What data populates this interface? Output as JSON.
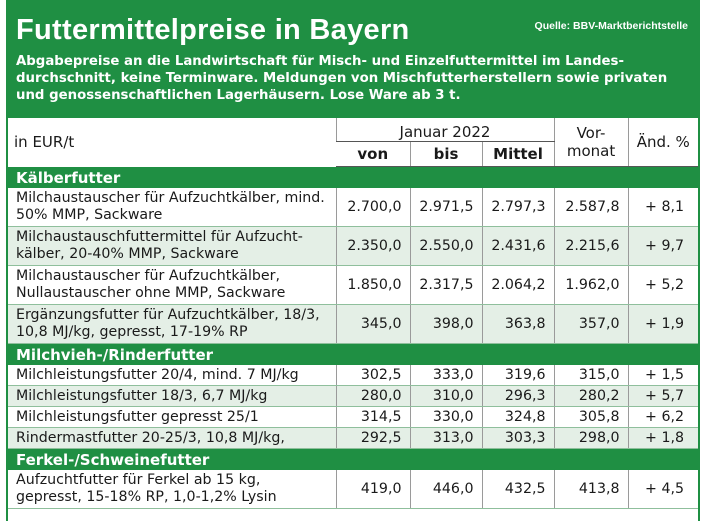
{
  "header": {
    "title": "Futtermittelpreise in Bayern",
    "source": "Quelle: BBV-Marktberichtstelle",
    "description": "Abgabepreise an die Landwirtschaft für Misch- und Einzelfuttermittel im Landes­durchschnitt, keine Terminware. Meldungen von Mischfutterherstellern sowie privaten und genossenschaftlichen Lagerhäusern. Lose Ware ab 3 t."
  },
  "table": {
    "unit": "in EUR/t",
    "month": "Januar 2022",
    "col_von": "von",
    "col_bis": "bis",
    "col_mittel": "Mittel",
    "col_vormonat": "Vor-\nmonat",
    "col_aend": "Änd. %",
    "sections": [
      {
        "title": "Kälberfutter",
        "rows": [
          {
            "product": "Milchaustauscher für Aufzuchtkälber, mind. 50% MMP, Sackware",
            "von": "2.700,0",
            "bis": "2.971,5",
            "mittel": "2.797,3",
            "vormonat": "2.587,8",
            "aend": "+ 8,1"
          },
          {
            "product": "Milchaustauschfuttermittel für Aufzucht­kälber, 20-40% MMP, Sackware",
            "von": "2.350,0",
            "bis": "2.550,0",
            "mittel": "2.431,6",
            "vormonat": "2.215,6",
            "aend": "+ 9,7"
          },
          {
            "product": "Milchaustauscher für Aufzuchtkälber, Nullaustauscher ohne MMP, Sackware",
            "von": "1.850,0",
            "bis": "2.317,5",
            "mittel": "2.064,2",
            "vormonat": "1.962,0",
            "aend": "+ 5,2"
          },
          {
            "product": "Ergänzungsfutter für Aufzuchtkälber, 18/3, 10,8 MJ/kg, gepresst, 17-19% RP",
            "von": "345,0",
            "bis": "398,0",
            "mittel": "363,8",
            "vormonat": "357,0",
            "aend": "+ 1,9"
          }
        ]
      },
      {
        "title": "Milchvieh-/Rinderfutter",
        "rows": [
          {
            "product": "Milchleistungsfutter 20/4, mind. 7 MJ/kg",
            "von": "302,5",
            "bis": "333,0",
            "mittel": "319,6",
            "vormonat": "315,0",
            "aend": "+ 1,5"
          },
          {
            "product": "Milchleistungsfutter 18/3, 6,7 MJ/kg",
            "von": "280,0",
            "bis": "310,0",
            "mittel": "296,3",
            "vormonat": "280,2",
            "aend": "+ 5,7"
          },
          {
            "product": "Milchleistungsfutter gepresst 25/1",
            "von": "314,5",
            "bis": "330,0",
            "mittel": "324,8",
            "vormonat": "305,8",
            "aend": "+ 6,2"
          },
          {
            "product": "Rindermastfutter 20-25/3, 10,8 MJ/kg,",
            "von": "292,5",
            "bis": "313,0",
            "mittel": "303,3",
            "vormonat": "298,0",
            "aend": "+ 1,8"
          }
        ]
      },
      {
        "title": "Ferkel-/Schweinefutter",
        "rows": [
          {
            "product": "Aufzuchtfutter für Ferkel ab 15 kg, gepresst, 15-18% RP, 1,0-1,2% Lysin",
            "von": "419,0",
            "bis": "446,0",
            "mittel": "432,5",
            "vormonat": "413,8",
            "aend": "+ 4,5"
          }
        ]
      }
    ]
  }
}
